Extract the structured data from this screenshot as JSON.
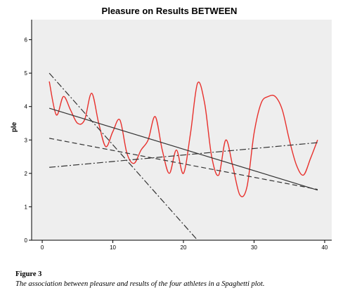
{
  "caption": {
    "figure_label": "Figure 3",
    "text": "The association between pleasure and results of the four athletes in a Spaghetti plot."
  },
  "chart_data": {
    "type": "line",
    "title": "Pleasure on Results BETWEEN",
    "xlabel": "",
    "ylabel": "ple",
    "xlim": [
      -1.5,
      41
    ],
    "ylim": [
      0,
      6.6
    ],
    "xticks": [
      0,
      10,
      20,
      30,
      40
    ],
    "yticks": [
      0,
      1,
      2,
      3,
      4,
      5,
      6
    ],
    "grid": false,
    "legend": "none",
    "plot_background": "#eeeeee",
    "series": [
      {
        "style": "red-curve",
        "color": "#e8302c",
        "x": [
          1,
          2,
          3,
          4,
          5,
          6,
          7,
          8,
          9,
          10,
          11,
          12,
          13,
          14,
          15,
          16,
          17,
          18,
          19,
          20,
          21,
          22,
          23,
          24,
          25,
          26,
          27,
          28,
          29,
          30,
          31,
          32,
          33,
          34,
          35,
          36,
          37,
          38,
          39
        ],
        "y": [
          4.75,
          3.75,
          4.3,
          3.9,
          3.5,
          3.6,
          4.4,
          3.5,
          2.8,
          3.25,
          3.6,
          2.6,
          2.3,
          2.7,
          3.0,
          3.7,
          2.7,
          2.0,
          2.7,
          2.0,
          3.2,
          4.7,
          4.1,
          2.5,
          1.95,
          3.0,
          2.2,
          1.35,
          1.6,
          3.2,
          4.1,
          4.3,
          4.3,
          3.9,
          3.0,
          2.25,
          1.95,
          2.45,
          3.0
        ]
      },
      {
        "style": "solid",
        "color": "#333333",
        "x": [
          1,
          39
        ],
        "y": [
          3.95,
          1.5
        ]
      },
      {
        "style": "dashed",
        "color": "#333333",
        "x": [
          1,
          39
        ],
        "y": [
          3.05,
          1.52
        ]
      },
      {
        "style": "dash-dot",
        "color": "#333333",
        "x": [
          1,
          39
        ],
        "y": [
          2.18,
          2.92
        ]
      },
      {
        "style": "dash-dot-steep",
        "color": "#333333",
        "x": [
          1,
          22
        ],
        "y": [
          5.0,
          0.0
        ]
      }
    ]
  }
}
